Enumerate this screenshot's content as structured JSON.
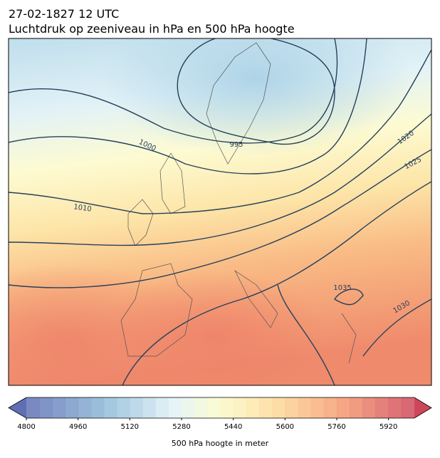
{
  "header": {
    "date": "27-02-1827 12 UTC",
    "title": "Luchtdruk op zeeniveau in hPa en 500 hPa hoogte"
  },
  "contour_labels": [
    "995",
    "1000",
    "1010",
    "1020",
    "1025",
    "1030",
    "1035"
  ],
  "colorbar": {
    "ticks": [
      "4800",
      "4960",
      "5120",
      "5280",
      "5440",
      "5600",
      "5760",
      "5920"
    ],
    "label": "500 hPa hoogte in meter"
  }
}
